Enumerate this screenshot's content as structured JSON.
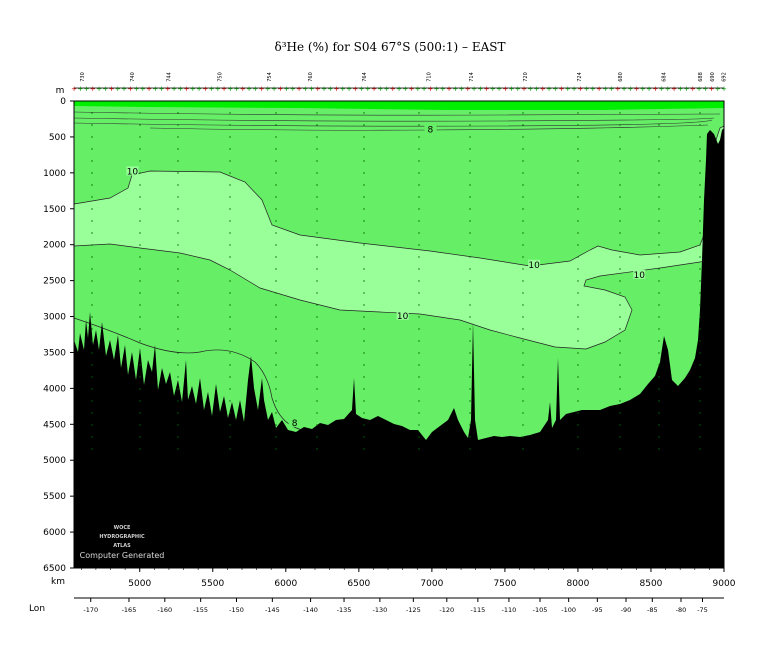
{
  "title": "δ³He (%) for S04 67°S (500:1) – EAST",
  "chart_data": {
    "type": "contour-section",
    "title": "δ³He (%) for S04 67°S (500:1) – EAST",
    "ylabel": "m",
    "xlabel": "km",
    "lon_label": "Lon",
    "ylim": [
      0,
      6500
    ],
    "xlim": [
      4550,
      9000
    ],
    "y_ticks": [
      0,
      500,
      1000,
      1500,
      2000,
      2500,
      3000,
      3500,
      4000,
      4500,
      5000,
      5500,
      6000,
      6500
    ],
    "x_ticks": [
      5000,
      5500,
      6000,
      6500,
      7000,
      7500,
      8000,
      8500,
      9000
    ],
    "lon_ticks": [
      {
        "km": 4620,
        "label": "-170"
      },
      {
        "km": 4780,
        "label": "-165"
      },
      {
        "km": 4930,
        "label": "-160"
      },
      {
        "km": 5080,
        "label": "-155"
      },
      {
        "km": 5230,
        "label": "-150"
      },
      {
        "km": 5380,
        "label": "-145"
      },
      {
        "km": 5540,
        "label": "-140"
      },
      {
        "km": 5680,
        "label": "-135"
      },
      {
        "km": 5830,
        "label": "-130"
      },
      {
        "km": 5970,
        "label": "-125"
      },
      {
        "km": 6110,
        "label": "-120"
      },
      {
        "km": 6240,
        "label": "-115"
      },
      {
        "km": 6370,
        "label": "-110"
      },
      {
        "km": 6500,
        "label": "-105"
      },
      {
        "km": 6620,
        "label": "-100"
      },
      {
        "km": 6740,
        "label": "-95"
      },
      {
        "km": 6860,
        "label": "-90"
      },
      {
        "km": 6970,
        "label": "-85"
      },
      {
        "km": 7090,
        "label": "-80"
      },
      {
        "km": 7180,
        "label": "-75"
      }
    ],
    "stations": [
      {
        "km": 4620,
        "label": "730"
      },
      {
        "km": 4960,
        "label": "740"
      },
      {
        "km": 5210,
        "label": "744"
      },
      {
        "km": 5560,
        "label": "750"
      },
      {
        "km": 5900,
        "label": "754"
      },
      {
        "km": 6180,
        "label": "760"
      },
      {
        "km": 6550,
        "label": "764"
      },
      {
        "km": 6990,
        "label": "710"
      },
      {
        "km": 7280,
        "label": "714"
      },
      {
        "km": 7650,
        "label": "720"
      },
      {
        "km": 8020,
        "label": "724"
      },
      {
        "km": 8300,
        "label": "680"
      },
      {
        "km": 8600,
        "label": "684"
      },
      {
        "km": 8850,
        "label": "688"
      },
      {
        "km": 8930,
        "label": "690"
      },
      {
        "km": 9010,
        "label": "692"
      }
    ],
    "contour_levels": [
      8,
      10
    ],
    "contour_labels": [
      {
        "km": 4950,
        "depth": 980,
        "label": "10"
      },
      {
        "km": 7700,
        "depth": 2280,
        "label": "10"
      },
      {
        "km": 8420,
        "depth": 2420,
        "label": "10"
      },
      {
        "km": 6800,
        "depth": 2990,
        "label": "10"
      },
      {
        "km": 6060,
        "depth": 4480,
        "label": "8"
      },
      {
        "km": 6990,
        "depth": 400,
        "label": "8"
      }
    ],
    "colors": {
      "surface": "#00ee00",
      "mid": "#66ee66",
      "core": "#99ff99",
      "bottom": "#000000"
    },
    "watermark": [
      "WOCE",
      "HYDROGRAPHIC",
      "ATLAS",
      "Computer Generated"
    ]
  }
}
